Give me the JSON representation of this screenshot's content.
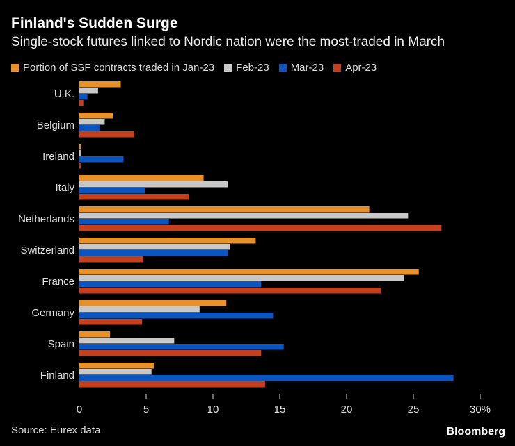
{
  "title": "Finland's Sudden Surge",
  "subtitle": "Single-stock futures linked to Nordic nation were the most-traded in March",
  "source": "Source: Eurex data",
  "brand": "Bloomberg",
  "chart_data": {
    "type": "bar",
    "orientation": "horizontal",
    "categories": [
      "U.K.",
      "Belgium",
      "Ireland",
      "Italy",
      "Netherlands",
      "Switzerland",
      "France",
      "Germany",
      "Spain",
      "Finland"
    ],
    "series": [
      {
        "name": "Portion of SSF contracts traded in Jan-23",
        "color": "#e8912a",
        "values": [
          3.1,
          2.5,
          0.1,
          9.3,
          21.7,
          13.2,
          25.4,
          11.0,
          2.3,
          5.6
        ]
      },
      {
        "name": "Feb-23",
        "color": "#c8c8c8",
        "values": [
          1.4,
          1.9,
          0.1,
          11.1,
          24.6,
          11.3,
          24.3,
          9.0,
          7.1,
          5.4
        ]
      },
      {
        "name": "Mar-23",
        "color": "#0a55c0",
        "values": [
          0.6,
          1.5,
          3.3,
          4.9,
          6.7,
          11.1,
          13.6,
          14.5,
          15.3,
          28.0
        ]
      },
      {
        "name": "Apr-23",
        "color": "#c2401e",
        "values": [
          0.3,
          4.1,
          0.1,
          8.2,
          27.1,
          4.8,
          22.6,
          4.7,
          13.6,
          13.9
        ]
      }
    ],
    "xlim": [
      0,
      30
    ],
    "xticks": [
      "0",
      "5",
      "10",
      "15",
      "20",
      "25",
      "30%"
    ],
    "legend_position": "top-left",
    "grid": false
  }
}
